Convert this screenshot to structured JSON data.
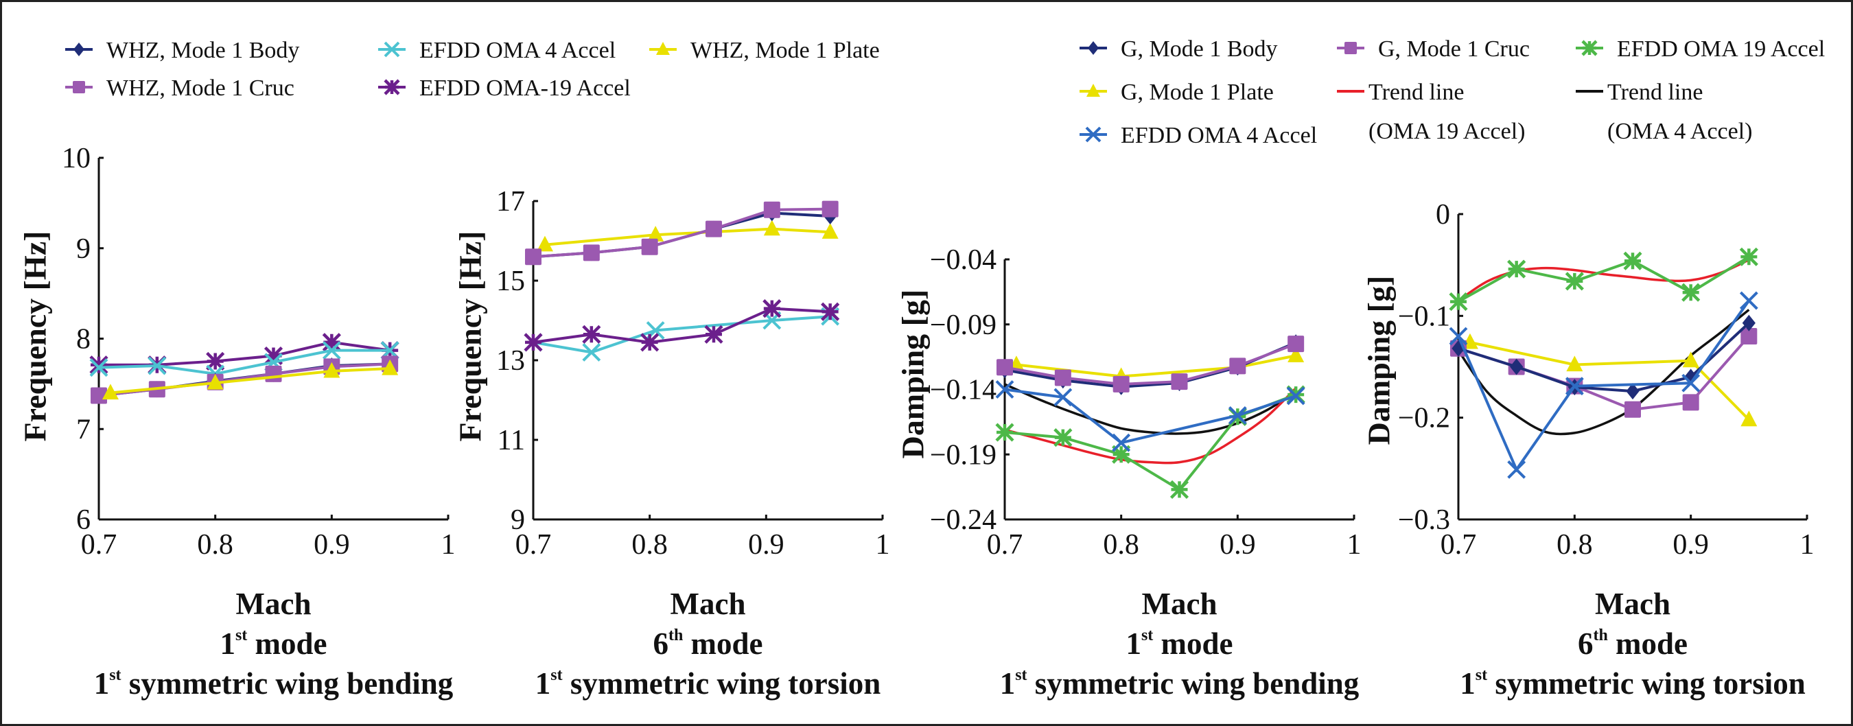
{
  "legends": [
    {
      "items": [
        {
          "label": "WHZ, Mode 1 Body",
          "color": "#1f2d78",
          "marker": "diamond"
        },
        {
          "label": "WHZ, Mode 1 Cruc",
          "color": "#9b59b0",
          "marker": "square"
        },
        {
          "label": "EFDD OMA 4 Accel",
          "color": "#4cc3d1",
          "marker": "x"
        },
        {
          "label": "EFDD OMA-19 Accel",
          "color": "#6b1f8c",
          "marker": "asterisk"
        },
        {
          "label": "WHZ, Mode 1 Plate",
          "color": "#e9e000",
          "marker": "triangle"
        }
      ]
    },
    {
      "items": [
        {
          "label": "G, Mode 1 Body",
          "color": "#1f2d78",
          "marker": "diamond"
        },
        {
          "label": "G, Mode 1 Plate",
          "color": "#e9e000",
          "marker": "triangle"
        },
        {
          "label": "EFDD OMA 4 Accel",
          "color": "#2f6cc3",
          "marker": "x"
        },
        {
          "label": "G, Mode 1 Cruc",
          "color": "#9b59b0",
          "marker": "square"
        },
        {
          "label_lines": [
            "Trend line",
            "(OMA 19 Accel)"
          ],
          "color": "#e8202a",
          "marker": "none"
        },
        {
          "label": "EFDD OMA 19 Accel",
          "color": "#4db848",
          "marker": "asterisk"
        },
        {
          "label_lines": [
            "Trend line",
            "(OMA 4 Accel)"
          ],
          "color": "#111111",
          "marker": "none"
        }
      ]
    }
  ],
  "chart_data": [
    {
      "type": "line",
      "ylabel": "Frequency [Hz]",
      "xlabel": "Mach",
      "mode": {
        "number": "1",
        "suffix": "st",
        "text": " mode"
      },
      "description": {
        "number": "1",
        "suffix": "st",
        "text": " symmetric wing bending"
      },
      "xlim": [
        0.7,
        1
      ],
      "ylim": [
        6,
        10
      ],
      "xticks": [
        0.7,
        0.8,
        0.9,
        1
      ],
      "xtick_labels": [
        "0.7",
        "0.8",
        "0.9",
        "1"
      ],
      "yticks": [
        6,
        7,
        8,
        9,
        10
      ],
      "ytick_labels": [
        "6",
        "7",
        "8",
        "9",
        "10"
      ],
      "grid": false,
      "series": [
        {
          "name": "EFDD OMA-19 Accel",
          "color": "#6b1f8c",
          "marker": "asterisk",
          "x": [
            0.7,
            0.75,
            0.8,
            0.85,
            0.9,
            0.95
          ],
          "y": [
            7.71,
            7.71,
            7.75,
            7.81,
            7.96,
            7.87
          ]
        },
        {
          "name": "EFDD OMA 4 Accel",
          "color": "#4cc3d1",
          "marker": "x",
          "x": [
            0.7,
            0.75,
            0.8,
            0.85,
            0.9,
            0.95
          ],
          "y": [
            7.68,
            7.7,
            7.61,
            7.74,
            7.87,
            7.87
          ]
        },
        {
          "name": "WHZ, Mode 1 Body",
          "color": "#1f2d78",
          "marker": "diamond",
          "x": [
            0.7,
            0.75,
            0.8,
            0.85,
            0.9,
            0.95
          ],
          "y": [
            7.37,
            7.44,
            7.53,
            7.61,
            7.7,
            7.72
          ]
        },
        {
          "name": "WHZ, Mode 1 Cruc",
          "color": "#9b59b0",
          "marker": "square",
          "x": [
            0.7,
            0.75,
            0.8,
            0.85,
            0.9,
            0.95
          ],
          "y": [
            7.37,
            7.44,
            7.52,
            7.61,
            7.69,
            7.72
          ]
        },
        {
          "name": "WHZ, Mode 1 Plate",
          "color": "#e9e000",
          "marker": "triangle",
          "x": [
            0.71,
            0.8,
            0.9,
            0.95
          ],
          "y": [
            7.4,
            7.51,
            7.64,
            7.67
          ]
        }
      ]
    },
    {
      "type": "line",
      "ylabel": "Frequency [Hz]",
      "xlabel": "Mach",
      "mode": {
        "number": "6",
        "suffix": "th",
        "text": " mode"
      },
      "description": {
        "number": "1",
        "suffix": "st",
        "text": " symmetric wing torsion"
      },
      "xlim": [
        0.7,
        1
      ],
      "ylim": [
        9,
        17
      ],
      "xticks": [
        0.7,
        0.8,
        0.9,
        1
      ],
      "xtick_labels": [
        "0.7",
        "0.8",
        "0.9",
        "1"
      ],
      "yticks": [
        9,
        11,
        13,
        15,
        17
      ],
      "ytick_labels": [
        "9",
        "11",
        "13",
        "15",
        "17"
      ],
      "grid": false,
      "series": [
        {
          "name": "EFDD OMA 4 Accel",
          "color": "#4cc3d1",
          "marker": "x",
          "x": [
            0.7,
            0.75,
            0.805,
            0.905,
            0.955
          ],
          "y": [
            13.45,
            13.2,
            13.75,
            14.0,
            14.1
          ]
        },
        {
          "name": "EFDD OMA-19 Accel",
          "color": "#6b1f8c",
          "marker": "asterisk",
          "x": [
            0.7,
            0.75,
            0.8,
            0.855,
            0.905,
            0.955
          ],
          "y": [
            13.45,
            13.65,
            13.45,
            13.65,
            14.3,
            14.22
          ]
        },
        {
          "name": "WHZ, Mode 1 Plate",
          "color": "#e9e000",
          "marker": "triangle",
          "x": [
            0.71,
            0.805,
            0.905,
            0.955
          ],
          "y": [
            15.9,
            16.15,
            16.3,
            16.22
          ]
        },
        {
          "name": "WHZ, Mode 1 Body",
          "color": "#1f2d78",
          "marker": "diamond",
          "x": [
            0.7,
            0.75,
            0.8,
            0.855,
            0.905,
            0.955
          ],
          "y": [
            15.6,
            15.7,
            15.85,
            16.3,
            16.7,
            16.62
          ]
        },
        {
          "name": "WHZ, Mode 1 Cruc",
          "color": "#9b59b0",
          "marker": "square",
          "x": [
            0.7,
            0.75,
            0.8,
            0.855,
            0.905,
            0.955
          ],
          "y": [
            15.6,
            15.7,
            15.85,
            16.3,
            16.78,
            16.8
          ]
        }
      ]
    },
    {
      "type": "line",
      "ylabel": "Damping [g]",
      "xlabel": "Mach",
      "mode": {
        "number": "1",
        "suffix": "st",
        "text": " mode"
      },
      "description": {
        "number": "1",
        "suffix": "st",
        "text": " symmetric wing bending"
      },
      "xlim": [
        0.7,
        1
      ],
      "ylim": [
        -0.24,
        -0.04
      ],
      "xticks": [
        0.7,
        0.8,
        0.9,
        1
      ],
      "xtick_labels": [
        "0.7",
        "0.8",
        "0.9",
        "1"
      ],
      "yticks": [
        -0.24,
        -0.19,
        -0.14,
        -0.09,
        -0.04
      ],
      "ytick_labels": [
        "−0.24",
        "−0.19",
        "−0.14",
        "−0.09",
        "−0.04"
      ],
      "grid": false,
      "series": [
        {
          "name": "Trend line (OMA 4 Accel)",
          "color": "#111111",
          "marker": "none",
          "x": [
            0.7,
            0.725,
            0.75,
            0.775,
            0.8,
            0.825,
            0.85,
            0.875,
            0.9,
            0.925,
            0.95
          ],
          "y": [
            -0.136,
            -0.146,
            -0.155,
            -0.163,
            -0.17,
            -0.173,
            -0.174,
            -0.172,
            -0.166,
            -0.156,
            -0.142
          ]
        },
        {
          "name": "Trend line (OMA 19 Accel)",
          "color": "#e8202a",
          "marker": "none",
          "x": [
            0.7,
            0.725,
            0.75,
            0.775,
            0.8,
            0.825,
            0.85,
            0.875,
            0.9,
            0.925,
            0.95
          ],
          "y": [
            -0.171,
            -0.177,
            -0.183,
            -0.189,
            -0.194,
            -0.196,
            -0.196,
            -0.19,
            -0.177,
            -0.161,
            -0.139
          ]
        },
        {
          "name": "EFDD OMA 19 Accel",
          "color": "#4db848",
          "marker": "asterisk",
          "x": [
            0.7,
            0.75,
            0.8,
            0.85,
            0.9,
            0.95
          ],
          "y": [
            -0.173,
            -0.177,
            -0.19,
            -0.217,
            -0.161,
            -0.144
          ]
        },
        {
          "name": "EFDD OMA 4 Accel",
          "color": "#2f6cc3",
          "marker": "x",
          "x": [
            0.7,
            0.75,
            0.8,
            0.9,
            0.95
          ],
          "y": [
            -0.14,
            -0.146,
            -0.181,
            -0.16,
            -0.145
          ]
        },
        {
          "name": "G, Mode 1 Plate",
          "color": "#e9e000",
          "marker": "triangle",
          "x": [
            0.71,
            0.8,
            0.9,
            0.95
          ],
          "y": [
            -0.121,
            -0.13,
            -0.123,
            -0.114
          ]
        },
        {
          "name": "G, Mode 1 Body",
          "color": "#1f2d78",
          "marker": "diamond",
          "x": [
            0.7,
            0.75,
            0.8,
            0.85,
            0.9,
            0.95
          ],
          "y": [
            -0.125,
            -0.133,
            -0.138,
            -0.135,
            -0.123,
            -0.104
          ]
        },
        {
          "name": "G, Mode 1 Cruc",
          "color": "#9b59b0",
          "marker": "square",
          "x": [
            0.7,
            0.75,
            0.8,
            0.85,
            0.9,
            0.95
          ],
          "y": [
            -0.123,
            -0.131,
            -0.136,
            -0.134,
            -0.122,
            -0.105
          ]
        }
      ]
    },
    {
      "type": "line",
      "ylabel": "Damping [g]",
      "xlabel": "Mach",
      "mode": {
        "number": "6",
        "suffix": "th",
        "text": " mode"
      },
      "description": {
        "number": "1",
        "suffix": "st",
        "text": " symmetric wing torsion"
      },
      "xlim": [
        0.7,
        1
      ],
      "ylim": [
        -0.3,
        0
      ],
      "xticks": [
        0.7,
        0.8,
        0.9,
        1
      ],
      "xtick_labels": [
        "0.7",
        "0.8",
        "0.9",
        "1"
      ],
      "yticks": [
        -0.3,
        -0.2,
        -0.1,
        0
      ],
      "ytick_labels": [
        "−0.3",
        "−0.2",
        "−0.1",
        "0"
      ],
      "grid": false,
      "series": [
        {
          "name": "Trend line (OMA 19 Accel)",
          "color": "#e8202a",
          "marker": "none",
          "x": [
            0.7,
            0.725,
            0.75,
            0.775,
            0.8,
            0.825,
            0.85,
            0.875,
            0.9,
            0.925,
            0.95
          ],
          "y": [
            -0.085,
            -0.066,
            -0.056,
            -0.053,
            -0.055,
            -0.059,
            -0.062,
            -0.065,
            -0.065,
            -0.058,
            -0.045
          ]
        },
        {
          "name": "EFDD OMA 19 Accel",
          "color": "#4db848",
          "marker": "asterisk",
          "x": [
            0.7,
            0.75,
            0.8,
            0.85,
            0.9,
            0.95
          ],
          "y": [
            -0.086,
            -0.054,
            -0.066,
            -0.046,
            -0.077,
            -0.042
          ]
        },
        {
          "name": "Trend line (OMA 4 Accel)",
          "color": "#111111",
          "marker": "none",
          "x": [
            0.7,
            0.725,
            0.75,
            0.775,
            0.8,
            0.825,
            0.85,
            0.875,
            0.9,
            0.925,
            0.95
          ],
          "y": [
            -0.134,
            -0.175,
            -0.198,
            -0.214,
            -0.215,
            -0.206,
            -0.191,
            -0.166,
            -0.139,
            -0.117,
            -0.094
          ]
        },
        {
          "name": "G, Mode 1 Plate",
          "color": "#e9e000",
          "marker": "triangle",
          "x": [
            0.71,
            0.8,
            0.9,
            0.95
          ],
          "y": [
            -0.126,
            -0.148,
            -0.144,
            -0.202
          ]
        },
        {
          "name": "G, Mode 1 Cruc",
          "color": "#9b59b0",
          "marker": "square",
          "x": [
            0.7,
            0.75,
            0.8,
            0.85,
            0.9,
            0.95
          ],
          "y": [
            -0.132,
            -0.15,
            -0.169,
            -0.192,
            -0.185,
            -0.12
          ]
        },
        {
          "name": "G, Mode 1 Body",
          "color": "#1f2d78",
          "marker": "diamond",
          "x": [
            0.7,
            0.75,
            0.8,
            0.85,
            0.9,
            0.95
          ],
          "y": [
            -0.132,
            -0.15,
            -0.17,
            -0.174,
            -0.16,
            -0.107
          ]
        },
        {
          "name": "EFDD OMA 4 Accel",
          "color": "#2f6cc3",
          "marker": "x",
          "x": [
            0.7,
            0.75,
            0.8,
            0.9,
            0.95
          ],
          "y": [
            -0.12,
            -0.251,
            -0.169,
            -0.166,
            -0.085
          ]
        }
      ]
    }
  ]
}
